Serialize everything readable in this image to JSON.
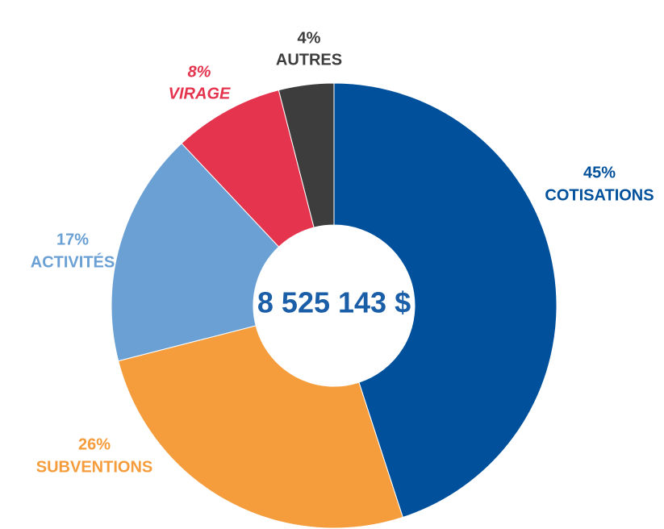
{
  "chart_data": {
    "type": "donut",
    "total_label": "8 525 143 $",
    "categories": [
      "COTISATIONS",
      "SUBVENTIONS",
      "ACTIVITÉS",
      "VIRAGE",
      "AUTRES"
    ],
    "values": [
      45,
      26,
      17,
      8,
      4
    ],
    "value_labels": [
      "45%",
      "26%",
      "17%",
      "8%",
      "4%"
    ],
    "colors": [
      "#00509b",
      "#f59c3c",
      "#6aa0d4",
      "#e5344e",
      "#3d3d3d"
    ]
  }
}
